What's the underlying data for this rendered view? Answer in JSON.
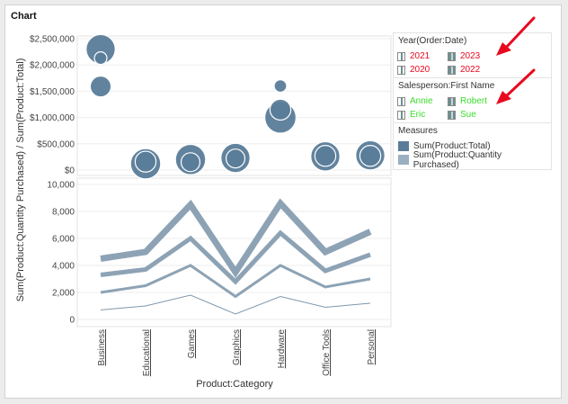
{
  "title": "Chart",
  "chart_data": {
    "type": "combo",
    "categories": [
      "Business",
      "Educational",
      "Games",
      "Graphics",
      "Hardware",
      "Office Tools",
      "Personal"
    ],
    "top_panel": {
      "type": "scatter",
      "ylabel_part": "Sum(Product:Total)",
      "ylim": [
        0,
        2500000
      ],
      "yticks": [
        "$2,500,000",
        "$2,000,000",
        "$1,500,000",
        "$1,000,000",
        "$500,000",
        "$0"
      ],
      "ytick_values": [
        2500000,
        2000000,
        1500000,
        1000000,
        500000,
        0
      ],
      "series": [
        {
          "name": "Business",
          "points": [
            {
              "value": 2300000,
              "size": 2.8
            },
            {
              "value": 2130000,
              "size": 1.2
            },
            {
              "value": 1590000,
              "size": 2.0
            }
          ]
        },
        {
          "name": "Educational",
          "points": [
            {
              "value": 120000,
              "size": 2.9
            },
            {
              "value": 160000,
              "size": 2.0
            }
          ]
        },
        {
          "name": "Games",
          "points": [
            {
              "value": 200000,
              "size": 2.9
            },
            {
              "value": 150000,
              "size": 1.8
            }
          ]
        },
        {
          "name": "Graphics",
          "points": [
            {
              "value": 230000,
              "size": 2.8
            },
            {
              "value": 220000,
              "size": 1.8
            }
          ]
        },
        {
          "name": "Hardware",
          "points": [
            {
              "value": 1600000,
              "size": 1.2
            },
            {
              "value": 1150000,
              "size": 2.0
            },
            {
              "value": 1000000,
              "size": 3.0
            }
          ]
        },
        {
          "name": "Office Tools",
          "points": [
            {
              "value": 260000,
              "size": 2.8
            },
            {
              "value": 270000,
              "size": 2.0
            }
          ]
        },
        {
          "name": "Personal",
          "points": [
            {
              "value": 280000,
              "size": 2.8
            },
            {
              "value": 270000,
              "size": 2.0
            }
          ]
        }
      ]
    },
    "bottom_panel": {
      "type": "line",
      "ylabel_part": "Sum(Product:Quantity Purchased)",
      "ylim": [
        0,
        10000
      ],
      "yticks": [
        "10,000",
        "8,000",
        "6,000",
        "4,000",
        "2,000",
        "0"
      ],
      "ytick_values": [
        10000,
        8000,
        6000,
        4000,
        2000,
        0
      ],
      "series": [
        {
          "name": "2023",
          "values": [
            4500,
            5000,
            8500,
            3500,
            8600,
            5000,
            6500
          ],
          "width": 7
        },
        {
          "name": "2022",
          "values": [
            3300,
            3700,
            6000,
            2800,
            6400,
            3600,
            4800
          ],
          "width": 5
        },
        {
          "name": "2021",
          "values": [
            2000,
            2500,
            4000,
            1700,
            4000,
            2400,
            3000
          ],
          "width": 3
        },
        {
          "name": "2020",
          "values": [
            700,
            1000,
            1800,
            400,
            1700,
            900,
            1200
          ],
          "width": 1
        }
      ]
    },
    "ylabel": "Sum(Product:Quantity Purchased) / Sum(Product:Total)",
    "xlabel": "Product:Category"
  },
  "legend": {
    "year_header": "Year(Order:Date)",
    "years": [
      {
        "label": "2021",
        "dark": false
      },
      {
        "label": "2023",
        "dark": true
      },
      {
        "label": "2020",
        "dark": false
      },
      {
        "label": "2022",
        "dark": true
      }
    ],
    "salesperson_header": "Salesperson:First Name",
    "salespersons": [
      {
        "label": "Annie",
        "dark": false
      },
      {
        "label": "Robert",
        "dark": true
      },
      {
        "label": "Eric",
        "dark": false
      },
      {
        "label": "Sue",
        "dark": true
      }
    ],
    "measures_header": "Measures",
    "measures": [
      {
        "label": "Sum(Product:Total)",
        "color": "#5a7c99"
      },
      {
        "label": "Sum(Product:Quantity Purchased)",
        "color": "#9aafc2"
      }
    ]
  },
  "colors": {
    "bubble": "#5a7c99",
    "bubble_stroke": "#ffffff",
    "line": "#8da3b5",
    "line_thin": "#7f97ac",
    "grid": "#eeeeee",
    "arrow": "#e8091f"
  }
}
